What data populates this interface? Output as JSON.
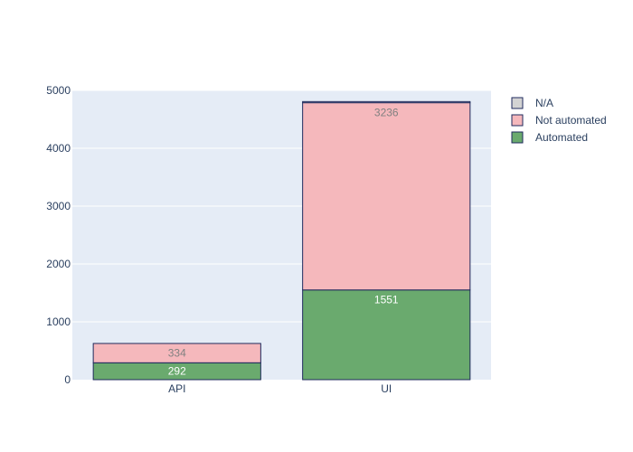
{
  "chart_data": {
    "type": "bar",
    "barmode": "stack",
    "categories": [
      "API",
      "UI"
    ],
    "ylim": [
      0,
      5000
    ],
    "yticks": [
      0,
      1000,
      2000,
      3000,
      4000,
      5000
    ],
    "grid": true,
    "legend_position": "top-right",
    "series": [
      {
        "name": "Automated",
        "values": [
          292,
          1551
        ],
        "labels": [
          "292",
          "1551"
        ],
        "color": "#6aaa6e",
        "label_color": "#ffffff"
      },
      {
        "name": "Not automated",
        "values": [
          334,
          3236
        ],
        "labels": [
          "334",
          "3236"
        ],
        "color": "#f5b8bc",
        "label_color": "#808080"
      },
      {
        "name": "N/A",
        "values": [
          0,
          20
        ],
        "labels": [
          "",
          ""
        ],
        "color": "#d3d3d3",
        "label_color": "#808080"
      }
    ],
    "legend_order": [
      "N/A",
      "Not automated",
      "Automated"
    ],
    "colors": {
      "plot_background": "#e5ecf6",
      "grid": "#ffffff",
      "bar_outline": "#1f2a5c",
      "text": "#2a3f5f"
    }
  }
}
